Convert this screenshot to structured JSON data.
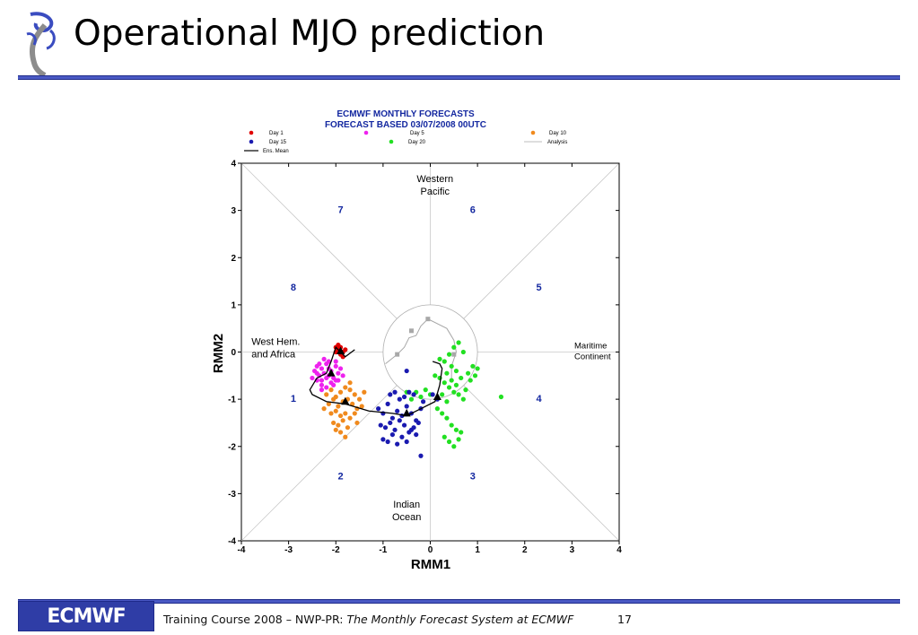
{
  "slide": {
    "title": "Operational MJO prediction",
    "footer_prefix": "Training Course 2008 – NWP-PR: ",
    "footer_italic": "The Monthly Forecast System at ECMWF",
    "page_number": "17",
    "logo_text": "ECMWF"
  },
  "chart_data": {
    "type": "scatter",
    "title": "ECMWF MONTHLY FORECASTS",
    "subtitle": "FORECAST  BASED 03/07/2008 00UTC",
    "xlabel": "RMM1",
    "ylabel": "RMM2",
    "xlim": [
      -4,
      4
    ],
    "ylim": [
      -4,
      4
    ],
    "xticks": [
      -4,
      -3,
      -2,
      -1,
      0,
      1,
      2,
      3,
      4
    ],
    "yticks": [
      -4,
      -3,
      -2,
      -1,
      0,
      1,
      2,
      3,
      4
    ],
    "colors": {
      "day1": "#e00000",
      "day5": "#ee22ee",
      "day10": "#f08a1e",
      "day15": "#1a1ab0",
      "day20": "#22e022",
      "analysis": "#a8a8a8",
      "mean": "#000000",
      "phase": "#1428a0"
    },
    "legend": [
      {
        "label": "Day 1",
        "color": "#e00000",
        "kind": "dot"
      },
      {
        "label": "Day 5",
        "color": "#ee22ee",
        "kind": "dot"
      },
      {
        "label": "Day 10",
        "color": "#f08a1e",
        "kind": "dot"
      },
      {
        "label": "Day 15",
        "color": "#1a1ab0",
        "kind": "dot"
      },
      {
        "label": "Day 20",
        "color": "#22e022",
        "kind": "dot"
      },
      {
        "label": "Analysis",
        "color": "#a8a8a8",
        "kind": "line"
      },
      {
        "label": "Ens. Mean",
        "color": "#000000",
        "kind": "line"
      }
    ],
    "phase_labels": [
      {
        "label": "1",
        "x": -2.9,
        "y": -1.05
      },
      {
        "label": "2",
        "x": -1.9,
        "y": -2.7
      },
      {
        "label": "3",
        "x": 0.9,
        "y": -2.7
      },
      {
        "label": "4",
        "x": 2.3,
        "y": -1.05
      },
      {
        "label": "5",
        "x": 2.3,
        "y": 1.3
      },
      {
        "label": "6",
        "x": 0.9,
        "y": 2.95
      },
      {
        "label": "7",
        "x": -1.9,
        "y": 2.95
      },
      {
        "label": "8",
        "x": -2.9,
        "y": 1.3
      }
    ],
    "regions": [
      {
        "line1": "Western",
        "line2": "Pacific",
        "x": 0.1,
        "y": 3.6
      },
      {
        "line1": "Indian",
        "line2": "Ocean",
        "x": -0.5,
        "y": -3.3
      },
      {
        "line1": "West Hem.",
        "line2": "and Africa",
        "x": -3.9,
        "y": 0.15
      },
      {
        "line1": "Maritime",
        "line2": "Continent",
        "x": 3.05,
        "y": 0.08
      }
    ],
    "analysis": {
      "x": [
        -0.95,
        -0.7,
        -0.55,
        -0.45,
        -0.3,
        -0.2,
        -0.05,
        0.35,
        0.5,
        0.55,
        0.45,
        0.45
      ],
      "y": [
        -0.25,
        -0.05,
        0.1,
        0.3,
        0.35,
        0.55,
        0.7,
        0.5,
        0.25,
        0.0,
        -0.3,
        -0.55
      ]
    },
    "analysis_markers": {
      "x": [
        -0.7,
        -0.4,
        -0.05,
        0.5
      ],
      "y": [
        -0.05,
        0.45,
        0.7,
        -0.05
      ]
    },
    "ens_mean": {
      "x": [
        -1.6,
        -1.8,
        -1.9,
        -2.0,
        -2.1,
        -2.2,
        -2.4,
        -2.55,
        -2.5,
        -2.2,
        -1.8,
        -1.3,
        -0.8,
        -0.5,
        -0.2,
        0.1,
        0.2,
        0.25,
        0.2,
        0.05
      ],
      "y": [
        0.05,
        -0.1,
        0.0,
        0.1,
        -0.2,
        -0.45,
        -0.55,
        -0.8,
        -0.9,
        -1.05,
        -1.1,
        -1.25,
        -1.3,
        -1.35,
        -1.2,
        -1.05,
        -0.7,
        -0.35,
        -0.25,
        -0.2
      ]
    },
    "ens_mean_markers": {
      "x": [
        -1.9,
        -2.1,
        -1.8,
        -0.5,
        0.15
      ],
      "y": [
        0.02,
        -0.45,
        -1.05,
        -1.3,
        -0.95
      ]
    },
    "series": [
      {
        "name": "Day 1",
        "x": [
          -1.95,
          -1.9,
          -1.85,
          -1.9,
          -2.0,
          -1.95,
          -1.8,
          -1.85,
          -2.0,
          -1.9
        ],
        "y": [
          0.05,
          0.1,
          0.0,
          -0.05,
          0.0,
          0.15,
          0.05,
          -0.1,
          0.1,
          0.0
        ]
      },
      {
        "name": "Day 5",
        "x": [
          -2.4,
          -2.3,
          -2.2,
          -2.1,
          -2.0,
          -1.9,
          -2.35,
          -2.25,
          -2.15,
          -2.05,
          -1.95,
          -2.4,
          -2.3,
          -2.2,
          -2.1,
          -2.0,
          -2.45,
          -2.35,
          -2.25,
          -2.15,
          -2.3,
          -2.2,
          -2.05,
          -1.95,
          -2.5,
          -2.4,
          -2.15,
          -2.0,
          -1.85,
          -2.3
        ],
        "y": [
          -0.3,
          -0.35,
          -0.25,
          -0.4,
          -0.3,
          -0.35,
          -0.5,
          -0.45,
          -0.5,
          -0.55,
          -0.45,
          -0.6,
          -0.6,
          -0.55,
          -0.65,
          -0.6,
          -0.4,
          -0.25,
          -0.15,
          -0.2,
          -0.7,
          -0.75,
          -0.7,
          -0.6,
          -0.55,
          -0.45,
          -0.35,
          -0.2,
          -0.5,
          -0.8
        ]
      },
      {
        "name": "Day 10",
        "x": [
          -2.2,
          -2.1,
          -2.0,
          -1.9,
          -1.8,
          -1.7,
          -1.6,
          -2.15,
          -2.05,
          -1.95,
          -1.85,
          -1.75,
          -1.65,
          -1.55,
          -2.1,
          -2.0,
          -1.9,
          -1.8,
          -1.7,
          -2.05,
          -1.95,
          -1.85,
          -1.75,
          -2.0,
          -1.9,
          -1.8,
          -1.6,
          -1.5,
          -1.4,
          -2.25,
          -1.7,
          -1.55,
          -1.45
        ],
        "y": [
          -0.9,
          -0.8,
          -0.95,
          -0.85,
          -0.75,
          -0.8,
          -0.9,
          -1.1,
          -1.0,
          -1.15,
          -1.05,
          -1.0,
          -1.1,
          -1.2,
          -1.3,
          -1.25,
          -1.35,
          -1.3,
          -1.4,
          -1.5,
          -1.55,
          -1.45,
          -1.6,
          -1.65,
          -1.7,
          -1.8,
          -1.3,
          -1.0,
          -0.85,
          -1.2,
          -0.65,
          -1.5,
          -1.15
        ]
      },
      {
        "name": "Day 15",
        "x": [
          -1.1,
          -1.0,
          -0.9,
          -0.8,
          -0.7,
          -0.6,
          -0.5,
          -0.4,
          -0.3,
          -0.2,
          -1.05,
          -0.95,
          -0.85,
          -0.75,
          -0.65,
          -0.55,
          -0.45,
          -0.35,
          -0.25,
          -1.0,
          -0.9,
          -0.8,
          -0.7,
          -0.6,
          -0.5,
          -0.4,
          -0.3,
          -0.85,
          -0.75,
          -0.65,
          -0.55,
          -0.45,
          -0.35,
          -0.15,
          0.05,
          0.15,
          -0.5,
          -0.2
        ],
        "y": [
          -1.2,
          -1.3,
          -1.1,
          -1.4,
          -1.25,
          -1.35,
          -1.15,
          -1.3,
          -1.45,
          -1.2,
          -1.55,
          -1.6,
          -1.5,
          -1.65,
          -1.45,
          -1.55,
          -1.7,
          -1.6,
          -1.5,
          -1.85,
          -1.9,
          -1.75,
          -1.95,
          -1.8,
          -1.9,
          -1.65,
          -1.75,
          -0.9,
          -0.85,
          -1.0,
          -0.95,
          -0.85,
          -0.9,
          -1.05,
          -0.9,
          -1.0,
          -0.4,
          -2.2
        ]
      },
      {
        "name": "Day 20",
        "x": [
          0.1,
          0.2,
          0.3,
          0.35,
          0.4,
          0.45,
          0.5,
          0.55,
          0.6,
          0.65,
          0.7,
          0.75,
          0.8,
          0.85,
          0.9,
          0.95,
          1.0,
          0.15,
          0.25,
          0.35,
          0.45,
          0.55,
          0.65,
          0.3,
          0.4,
          0.5,
          0.6,
          -0.3,
          -0.2,
          -0.1,
          0.0,
          -0.4,
          -0.5,
          0.2,
          0.3,
          0.4,
          0.5,
          0.6,
          0.7,
          0.45,
          0.55,
          1.5,
          0.35,
          0.25
        ],
        "y": [
          -0.5,
          -0.55,
          -0.65,
          -0.45,
          -0.75,
          -0.6,
          -0.85,
          -0.7,
          -0.9,
          -0.55,
          -1.0,
          -0.8,
          -0.45,
          -0.6,
          -0.3,
          -0.5,
          -0.35,
          -1.2,
          -1.3,
          -1.4,
          -1.55,
          -1.65,
          -1.7,
          -1.8,
          -1.9,
          -2.0,
          -1.85,
          -0.85,
          -0.95,
          -0.8,
          -0.9,
          -1.0,
          -0.85,
          -0.15,
          -0.2,
          -0.05,
          0.1,
          0.2,
          0.0,
          -0.3,
          -0.4,
          -0.95,
          -1.05,
          -0.9
        ]
      }
    ]
  }
}
